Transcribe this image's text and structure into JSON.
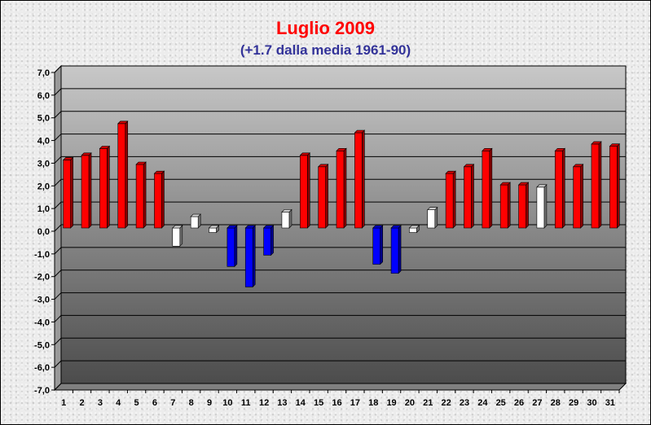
{
  "chart_data": {
    "type": "bar",
    "title": "Luglio 2009",
    "subtitle": "(+1.7 dalla media 1961-90)",
    "xlabel": "",
    "ylabel": "",
    "ylim": [
      -7,
      7
    ],
    "yticks": [
      "7,0",
      "6,0",
      "5,0",
      "4,0",
      "3,0",
      "2,0",
      "1,0",
      "0,0",
      "-1,0",
      "-2,0",
      "-3,0",
      "-4,0",
      "-5,0",
      "-6,0",
      "-7,0"
    ],
    "categories": [
      "1",
      "2",
      "3",
      "4",
      "5",
      "6",
      "7",
      "8",
      "9",
      "10",
      "11",
      "12",
      "13",
      "14",
      "15",
      "16",
      "17",
      "18",
      "19",
      "20",
      "21",
      "22",
      "23",
      "24",
      "25",
      "26",
      "27",
      "28",
      "29",
      "30",
      "31"
    ],
    "values": [
      3.0,
      3.2,
      3.5,
      4.6,
      2.8,
      2.4,
      -0.8,
      0.5,
      -0.2,
      -1.7,
      -2.6,
      -1.2,
      0.7,
      3.2,
      2.7,
      3.4,
      4.2,
      -1.6,
      -2.0,
      -0.2,
      0.8,
      2.4,
      2.7,
      3.4,
      1.9,
      1.9,
      1.8,
      3.4,
      2.7,
      3.7,
      3.6
    ],
    "grid": true,
    "bar_colors": {
      "warm": "#ff0000",
      "cold": "#0000ff",
      "normal": "#ffffff"
    },
    "plot_colors": {
      "wall_top": "#c8c8c8",
      "wall_bottom": "#4c4c4c",
      "floor": "#808080"
    }
  }
}
